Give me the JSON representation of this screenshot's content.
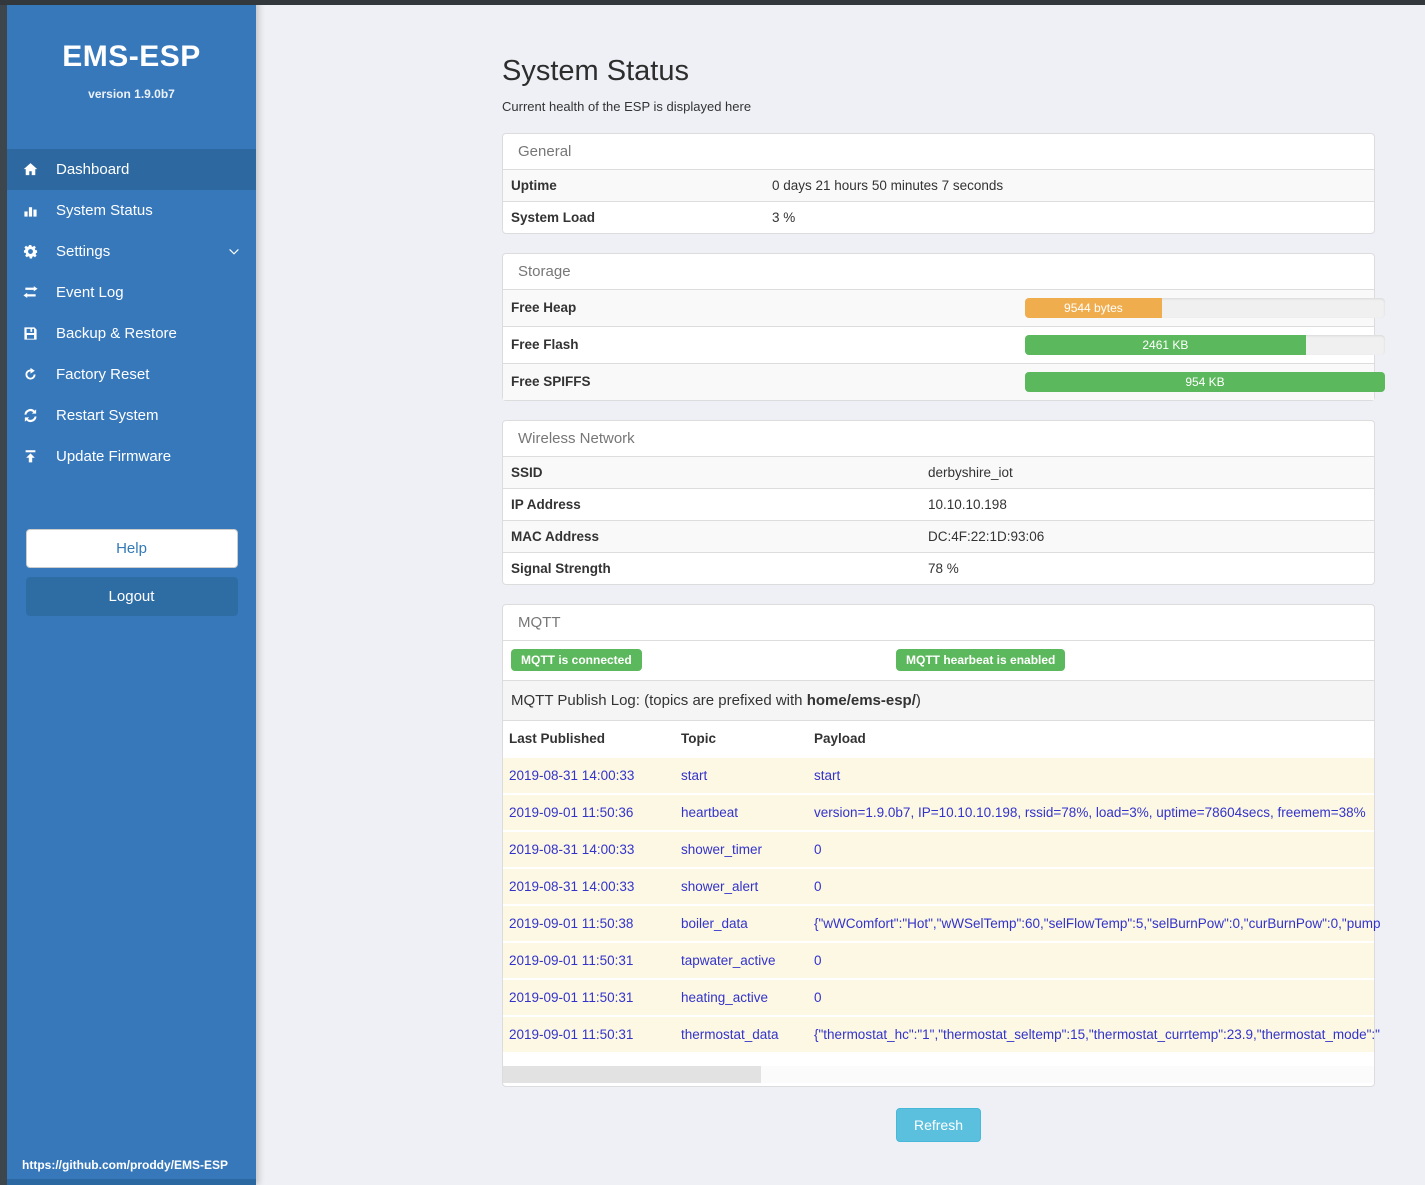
{
  "sidebar": {
    "title": "EMS-ESP",
    "version": "version 1.9.0b7",
    "items": [
      {
        "label": "Dashboard",
        "icon": "home-icon",
        "active": true,
        "chevron": false
      },
      {
        "label": "System Status",
        "icon": "bar-chart-icon",
        "active": false,
        "chevron": false
      },
      {
        "label": "Settings",
        "icon": "gear-icon",
        "active": false,
        "chevron": true
      },
      {
        "label": "Event Log",
        "icon": "exchange-icon",
        "active": false,
        "chevron": false
      },
      {
        "label": "Backup & Restore",
        "icon": "save-icon",
        "active": false,
        "chevron": false
      },
      {
        "label": "Factory Reset",
        "icon": "rotate-icon",
        "active": false,
        "chevron": false
      },
      {
        "label": "Restart System",
        "icon": "refresh-icon",
        "active": false,
        "chevron": false
      },
      {
        "label": "Update Firmware",
        "icon": "upload-icon",
        "active": false,
        "chevron": false
      }
    ],
    "help_label": "Help",
    "logout_label": "Logout",
    "footer_link": "https://github.com/proddy/EMS-ESP"
  },
  "page": {
    "title": "System Status",
    "subtitle": "Current health of the ESP is displayed here",
    "refresh_label": "Refresh"
  },
  "panels": {
    "general": {
      "header": "General",
      "rows": [
        {
          "label": "Uptime",
          "value": "0 days 21 hours 50 minutes 7 seconds"
        },
        {
          "label": "System Load",
          "value": "3 %"
        }
      ]
    },
    "storage": {
      "header": "Storage",
      "rows": [
        {
          "label": "Free Heap",
          "value": "9544 bytes",
          "percent": 38,
          "color": "#f0ad4e"
        },
        {
          "label": "Free Flash",
          "value": "2461 KB",
          "percent": 78,
          "color": "#5cb85c"
        },
        {
          "label": "Free SPIFFS",
          "value": "954 KB",
          "percent": 100,
          "color": "#5cb85c"
        }
      ]
    },
    "wireless": {
      "header": "Wireless Network",
      "rows": [
        {
          "label": "SSID",
          "value": "derbyshire_iot"
        },
        {
          "label": "IP Address",
          "value": "10.10.10.198"
        },
        {
          "label": "MAC Address",
          "value": "DC:4F:22:1D:93:06"
        },
        {
          "label": "Signal Strength",
          "value": "78 %"
        }
      ]
    },
    "mqtt": {
      "header": "MQTT",
      "badges": [
        "MQTT is connected",
        "MQTT hearbeat is enabled"
      ],
      "publish_log": {
        "prefix": "MQTT Publish Log: (topics are prefixed with ",
        "bold": "home/ems-esp/",
        "suffix": ")"
      },
      "columns": [
        "Last Published",
        "Topic",
        "Payload"
      ],
      "rows": [
        {
          "time": "2019-08-31 14:00:33",
          "topic": "start",
          "payload": "start"
        },
        {
          "time": "2019-09-01 11:50:36",
          "topic": "heartbeat",
          "payload": "version=1.9.0b7, IP=10.10.10.198, rssid=78%, load=3%, uptime=78604secs, freemem=38%"
        },
        {
          "time": "2019-08-31 14:00:33",
          "topic": "shower_timer",
          "payload": "0"
        },
        {
          "time": "2019-08-31 14:00:33",
          "topic": "shower_alert",
          "payload": "0"
        },
        {
          "time": "2019-09-01 11:50:38",
          "topic": "boiler_data",
          "payload": "{\"wWComfort\":\"Hot\",\"wWSelTemp\":60,\"selFlowTemp\":5,\"selBurnPow\":0,\"curBurnPow\":0,\"pump"
        },
        {
          "time": "2019-09-01 11:50:31",
          "topic": "tapwater_active",
          "payload": "0"
        },
        {
          "time": "2019-09-01 11:50:31",
          "topic": "heating_active",
          "payload": "0"
        },
        {
          "time": "2019-09-01 11:50:31",
          "topic": "thermostat_data",
          "payload": "{\"thermostat_hc\":\"1\",\"thermostat_seltemp\":15,\"thermostat_currtemp\":23.9,\"thermostat_mode\":\""
        }
      ]
    }
  },
  "colors": {
    "sidebar": "#3778bb",
    "sidebar_active": "#2d69a0",
    "success": "#5cb85c",
    "warning": "#f0ad4e",
    "info": "#5bc0de",
    "log_text": "#3333cc",
    "log_bg": "#fcf8e3"
  }
}
